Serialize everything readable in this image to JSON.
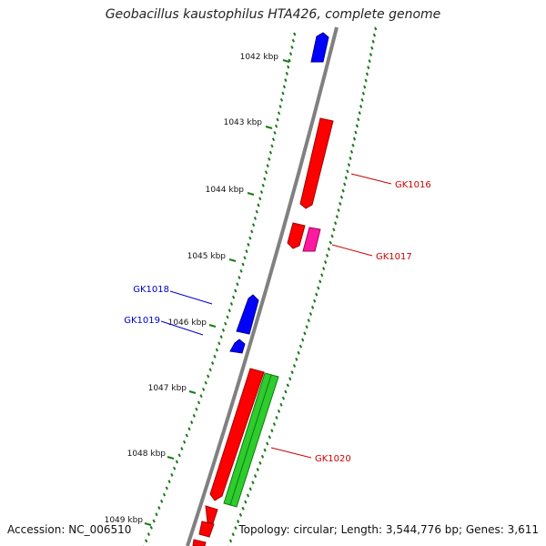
{
  "title": "Geobacillus kaustophilus HTA426, complete genome",
  "footer": {
    "accession": "Accession: NC_006510",
    "topology": "Topology: circular; Length: 3,544,776 bp; Genes: 3,611"
  },
  "colors": {
    "backbone": "#808080",
    "tick": "#1a7a1a",
    "forward_gene": "#ff0000",
    "reverse_gene": "#0000ff",
    "pink_gene": "#ff1aa0",
    "green_gene": "#2ecc2e"
  },
  "ticks": [
    "1042 kbp",
    "1043 kbp",
    "1044 kbp",
    "1045 kbp",
    "1046 kbp",
    "1047 kbp",
    "1048 kbp",
    "1049 kbp"
  ],
  "gene_labels": [
    {
      "id": "gk1016",
      "text": "GK1016",
      "color": "#cc0000"
    },
    {
      "id": "gk1017",
      "text": "GK1017",
      "color": "#cc0000"
    },
    {
      "id": "gk1018",
      "text": "GK1018",
      "color": "#0000cc"
    },
    {
      "id": "gk1019",
      "text": "GK1019",
      "color": "#0000cc"
    },
    {
      "id": "gk1020",
      "text": "GK1020",
      "color": "#cc0000"
    }
  ]
}
